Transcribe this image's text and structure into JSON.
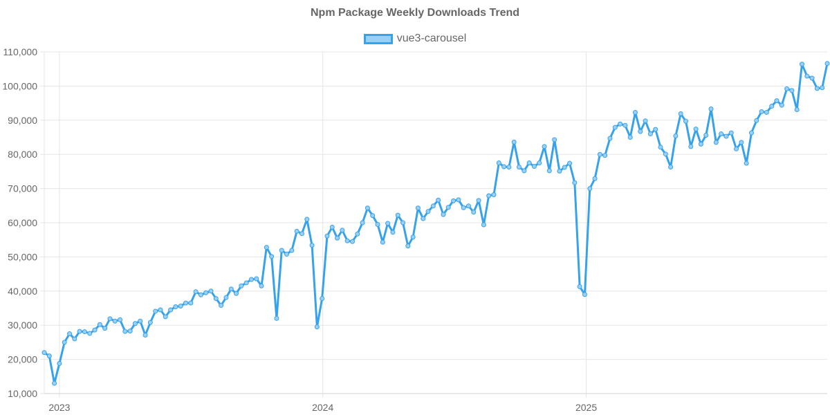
{
  "chart_data": {
    "type": "line",
    "title": "Npm Package Weekly Downloads Trend",
    "xlabel": "",
    "ylabel": "",
    "ylim": [
      10000,
      110000
    ],
    "yticks": [
      10000,
      20000,
      30000,
      40000,
      50000,
      60000,
      70000,
      80000,
      90000,
      100000,
      110000
    ],
    "ytick_labels": [
      "10,000",
      "20,000",
      "30,000",
      "40,000",
      "50,000",
      "60,000",
      "70,000",
      "80,000",
      "90,000",
      "100,000",
      "110,000"
    ],
    "xticks": [
      {
        "label": "2023",
        "week_index": 3
      },
      {
        "label": "2024",
        "week_index": 55.14
      },
      {
        "label": "2025",
        "week_index": 107.29
      }
    ],
    "grid": true,
    "legend_position": "top",
    "series": [
      {
        "name": "vue3-carousel",
        "color": "#36A2EB",
        "fill": "#9AD0F5",
        "values": [
          22000,
          21000,
          13000,
          18800,
          25000,
          27500,
          26000,
          28200,
          28100,
          27600,
          28600,
          30200,
          29100,
          31900,
          31200,
          31600,
          28200,
          28300,
          30500,
          31200,
          27100,
          30800,
          34100,
          34500,
          32500,
          34500,
          35400,
          35600,
          36500,
          36500,
          39800,
          38900,
          39500,
          40000,
          37800,
          35800,
          38100,
          40600,
          39300,
          41500,
          42400,
          43400,
          43600,
          41500,
          52800,
          50100,
          32000,
          51900,
          50800,
          51900,
          57500,
          56800,
          61000,
          53400,
          29500,
          37800,
          56100,
          58700,
          55500,
          57800,
          54700,
          54500,
          56700,
          60000,
          64300,
          62100,
          59500,
          54300,
          59800,
          57200,
          62200,
          60000,
          53200,
          55800,
          64300,
          61200,
          63300,
          64900,
          66600,
          62400,
          64500,
          66400,
          66700,
          64400,
          64900,
          63100,
          66500,
          59400,
          67900,
          68200,
          77500,
          76400,
          76300,
          83600,
          76300,
          75200,
          77500,
          76500,
          77500,
          82300,
          75200,
          84300,
          75100,
          76200,
          77400,
          71700,
          41300,
          39000,
          70000,
          72900,
          80000,
          79700,
          84700,
          87900,
          88900,
          88500,
          85000,
          92300,
          86700,
          89800,
          86000,
          87300,
          82100,
          80100,
          76300,
          85400,
          91900,
          89700,
          82300,
          87400,
          83000,
          85600,
          93300,
          83500,
          86000,
          85300,
          86300,
          81600,
          83500,
          77400,
          86300,
          89900,
          92500,
          92300,
          94100,
          95700,
          94400,
          99200,
          98700,
          93100,
          106400,
          102900,
          102300,
          99300,
          99500,
          106600
        ]
      }
    ]
  }
}
